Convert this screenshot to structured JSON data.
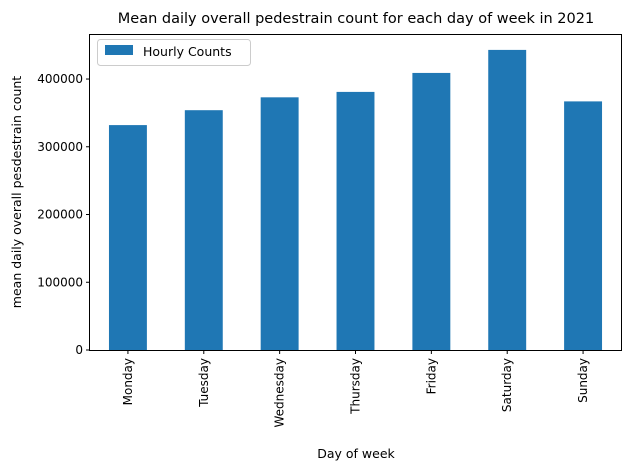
{
  "chart_data": {
    "type": "bar",
    "title": "Mean daily overall pedestrain count for each day of week in 2021",
    "xlabel": "Day of week",
    "ylabel": "mean daily overall pesdestrain count",
    "categories": [
      "Monday",
      "Tuesday",
      "Wednesday",
      "Thursday",
      "Friday",
      "Saturday",
      "Sunday"
    ],
    "series": [
      {
        "name": "Hourly Counts",
        "color": "#1f77b4",
        "values": [
          332000,
          354000,
          373000,
          381000,
          409000,
          443000,
          367000
        ]
      }
    ],
    "ylim": [
      0,
      465000
    ],
    "yticks": [
      0,
      100000,
      200000,
      300000,
      400000
    ],
    "ytick_labels": [
      "0",
      "100000",
      "200000",
      "300000",
      "400000"
    ],
    "grid": false,
    "legend_position": "top-left"
  }
}
